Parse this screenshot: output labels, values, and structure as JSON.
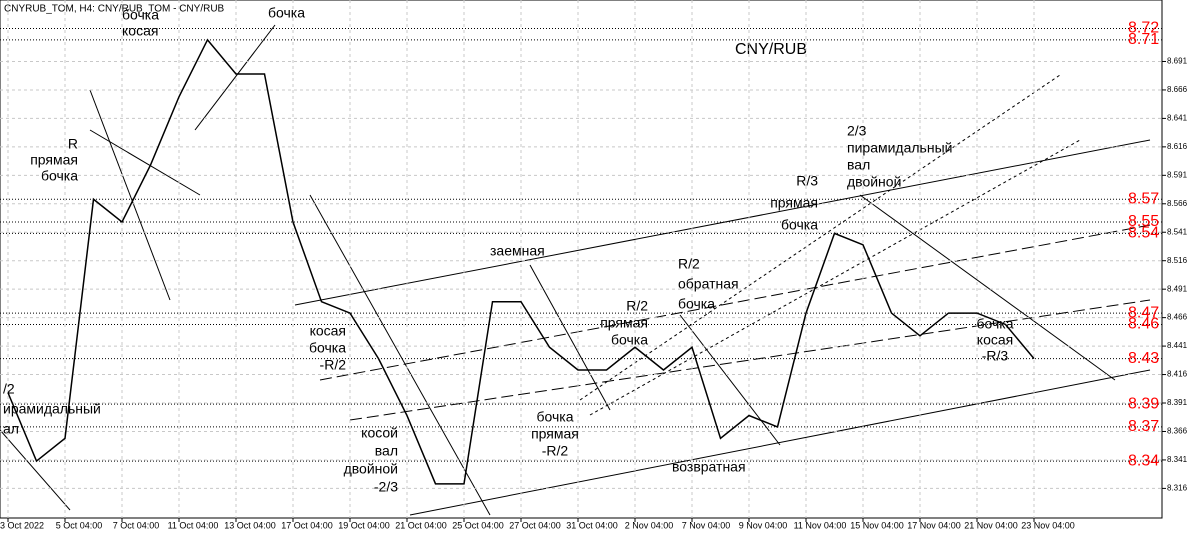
{
  "chart_data": {
    "type": "line",
    "header": "CNYRUB_TOM, H4:  CNY/RUB_TOM - CNY/RUB",
    "title": "CNY/RUB",
    "categories": [
      "3 Oct 2022",
      null,
      "5 Oct 04:00",
      null,
      "7 Oct 04:00",
      null,
      "11 Oct 04:00",
      null,
      "13 Oct 04:00",
      null,
      "17 Oct 04:00",
      null,
      "19 Oct 04:00",
      null,
      "21 Oct 04:00",
      null,
      "25 Oct 04:00",
      null,
      "27 Oct 04:00",
      null,
      "31 Oct 04:00",
      null,
      "2 Nov 04:00",
      null,
      "7 Nov 04:00",
      null,
      "9 Nov 04:00",
      null,
      "11 Nov 04:00",
      null,
      "15 Nov 04:00",
      null,
      "17 Nov 04:00",
      null,
      "21 Nov 04:00",
      null,
      "23 Nov 04:00"
    ],
    "series": [
      {
        "name": "CNY/RUB_TOM",
        "color": "#000000",
        "values": [
          8.4,
          8.34,
          8.36,
          8.57,
          8.55,
          8.6,
          8.66,
          8.71,
          8.68,
          8.68,
          8.55,
          8.48,
          8.47,
          8.43,
          8.38,
          8.32,
          8.32,
          8.48,
          8.48,
          8.44,
          8.42,
          8.42,
          8.44,
          8.42,
          8.44,
          8.36,
          8.38,
          8.37,
          8.47,
          8.54,
          8.53,
          8.47,
          8.45,
          8.47,
          8.47,
          8.46,
          8.43
        ]
      }
    ],
    "ylim": [
      8.29,
      8.745
    ],
    "yticks": [
      8.316,
      8.341,
      8.366,
      8.391,
      8.416,
      8.441,
      8.466,
      8.491,
      8.516,
      8.541,
      8.566,
      8.591,
      8.616,
      8.641,
      8.666,
      8.691
    ],
    "grid": true,
    "levels": [
      8.72,
      8.71,
      8.57,
      8.55,
      8.54,
      8.47,
      8.46,
      8.43,
      8.39,
      8.37,
      8.34
    ],
    "level_color": "#ff0000",
    "annotations": [
      {
        "lines": [
          "бочка",
          "косая"
        ]
      },
      {
        "lines": [
          "бочка"
        ]
      },
      {
        "lines": [
          "R",
          "прямая",
          "бочка"
        ]
      },
      {
        "lines": [
          "заемная"
        ]
      },
      {
        "lines": [
          "R/2",
          "обратная",
          "бочка"
        ]
      },
      {
        "lines": [
          "R/3",
          "прямая",
          "бочка"
        ]
      },
      {
        "lines": [
          "2/3",
          "пирамидальный",
          "вал",
          "двойной"
        ]
      },
      {
        "lines": [
          "R/2",
          "прямая",
          "бочка"
        ]
      },
      {
        "lines": [
          "косая",
          "бочка",
          "-R/2"
        ]
      },
      {
        "lines": [
          "/2",
          "ирамидальный",
          "ал"
        ]
      },
      {
        "lines": [
          "косой",
          "вал",
          "двойной",
          "-2/3"
        ]
      },
      {
        "lines": [
          "бочка",
          "прямая",
          "-R/2"
        ]
      },
      {
        "lines": [
          "возвратная"
        ]
      },
      {
        "lines": [
          "бочка",
          "косая",
          "-R/3"
        ]
      }
    ]
  }
}
